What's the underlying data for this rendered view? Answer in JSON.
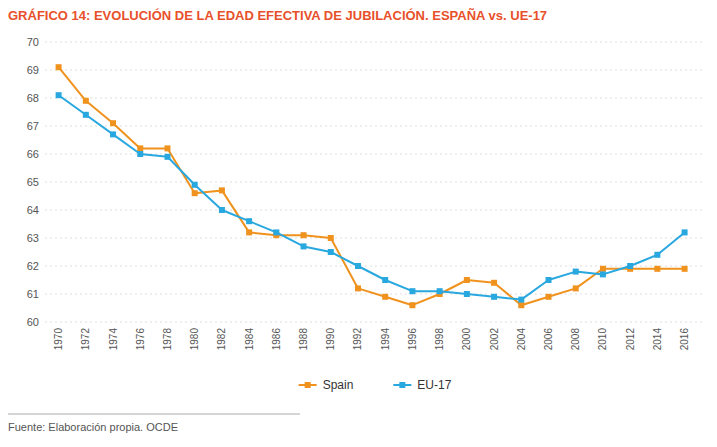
{
  "chart_data": {
    "type": "line",
    "title": "GRÁFICO 14: EVOLUCIÓN DE LA EDAD EFECTIVA DE JUBILACIÓN. ESPAÑA vs. UE-17",
    "title_color": "#e8502a",
    "footnote": "Fuente: Elaboración propia. OCDE",
    "x": [
      1970,
      1972,
      1974,
      1976,
      1978,
      1980,
      1982,
      1984,
      1986,
      1988,
      1990,
      1992,
      1994,
      1996,
      1998,
      2000,
      2002,
      2004,
      2006,
      2008,
      2010,
      2012,
      2014,
      2016
    ],
    "xlim": [
      1969,
      2017.5
    ],
    "xticks": [
      1970,
      1972,
      1974,
      1976,
      1978,
      1980,
      1982,
      1984,
      1986,
      1988,
      1990,
      1992,
      1994,
      1996,
      1998,
      2000,
      2002,
      2004,
      2006,
      2008,
      2010,
      2012,
      2014,
      2016
    ],
    "series": [
      {
        "name": "Spain",
        "color": "#f0921e",
        "marker": "square",
        "values": [
          69.1,
          67.9,
          67.1,
          66.2,
          66.2,
          64.6,
          64.7,
          63.2,
          63.1,
          63.1,
          63.0,
          61.2,
          60.9,
          60.6,
          61.0,
          61.5,
          61.4,
          60.6,
          60.9,
          61.2,
          61.9,
          61.9,
          61.9,
          61.9
        ]
      },
      {
        "name": "EU-17",
        "color": "#29a8e0",
        "marker": "square",
        "values": [
          68.1,
          67.4,
          66.7,
          66.0,
          65.9,
          64.9,
          64.0,
          63.6,
          63.2,
          62.7,
          62.5,
          62.0,
          61.5,
          61.1,
          61.1,
          61.0,
          60.9,
          60.8,
          61.5,
          61.8,
          61.7,
          62.0,
          62.4,
          63.2
        ]
      }
    ],
    "ylim": [
      60,
      70
    ],
    "yticks": [
      60,
      61,
      62,
      63,
      64,
      65,
      66,
      67,
      68,
      69,
      70
    ],
    "grid": true,
    "legend": "bottom"
  }
}
